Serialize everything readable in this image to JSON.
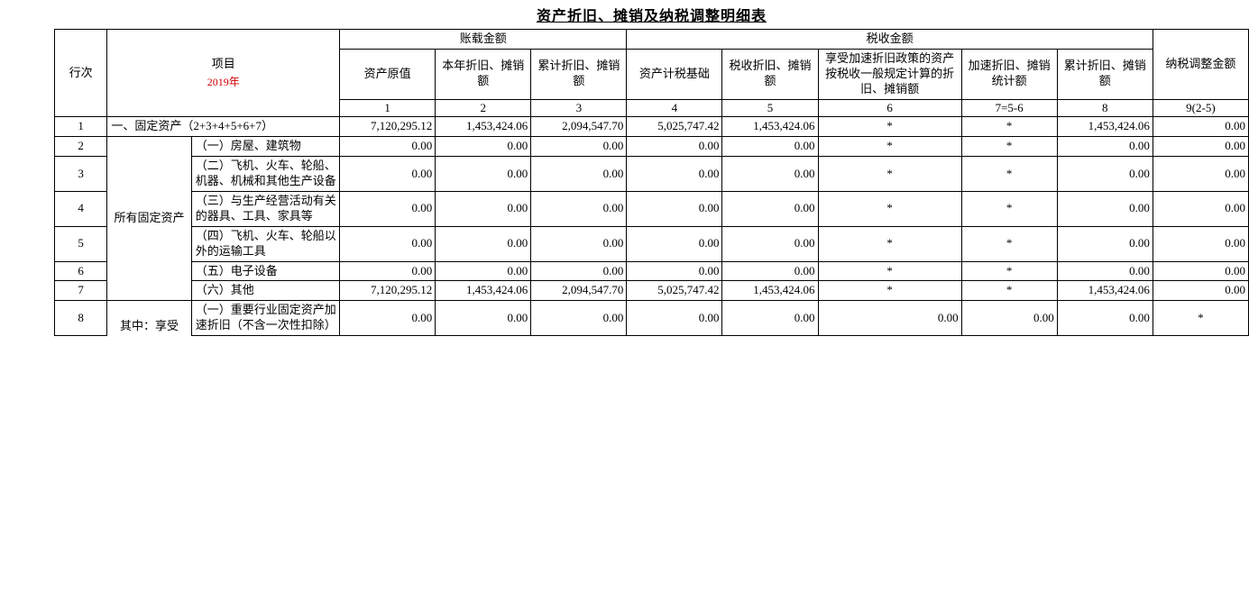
{
  "title": "资产折旧、摊销及纳税调整明细表",
  "year_label": "2019年",
  "header": {
    "rownum": "行次",
    "item": "项目",
    "book_group": "账载金额",
    "tax_group": "税收金额",
    "cols": [
      "资产原值",
      "本年折旧、摊销额",
      "累计折旧、摊销额",
      "资产计税基础",
      "税收折旧、摊销额",
      "享受加速折旧政策的资产按税收一般规定计算的折旧、摊销额",
      "加速折旧、摊销统计额",
      "累计折旧、摊销额",
      "纳税调整金额"
    ],
    "colnums": [
      "1",
      "2",
      "3",
      "4",
      "5",
      "6",
      "7=5-6",
      "8",
      "9(2-5)"
    ]
  },
  "group_labels": {
    "all_fixed_assets": "所有固定资产",
    "of_which_enjoy": "其中：享受"
  },
  "rows": [
    {
      "rn": "1",
      "item": "一、固定资产（2+3+4+5+6+7）",
      "v": [
        "7,120,295.12",
        "1,453,424.06",
        "2,094,547.70",
        "5,025,747.42",
        "1,453,424.06",
        "*",
        "*",
        "1,453,424.06",
        "0.00"
      ]
    },
    {
      "rn": "2",
      "item": "（一）房屋、建筑物",
      "v": [
        "0.00",
        "0.00",
        "0.00",
        "0.00",
        "0.00",
        "*",
        "*",
        "0.00",
        "0.00"
      ]
    },
    {
      "rn": "3",
      "item": "（二）飞机、火车、轮船、机器、机械和其他生产设备",
      "v": [
        "0.00",
        "0.00",
        "0.00",
        "0.00",
        "0.00",
        "*",
        "*",
        "0.00",
        "0.00"
      ]
    },
    {
      "rn": "4",
      "item": "（三）与生产经营活动有关的器具、工具、家具等",
      "v": [
        "0.00",
        "0.00",
        "0.00",
        "0.00",
        "0.00",
        "*",
        "*",
        "0.00",
        "0.00"
      ]
    },
    {
      "rn": "5",
      "item": "（四）飞机、火车、轮船以外的运输工具",
      "v": [
        "0.00",
        "0.00",
        "0.00",
        "0.00",
        "0.00",
        "*",
        "*",
        "0.00",
        "0.00"
      ]
    },
    {
      "rn": "6",
      "item": "（五）电子设备",
      "v": [
        "0.00",
        "0.00",
        "0.00",
        "0.00",
        "0.00",
        "*",
        "*",
        "0.00",
        "0.00"
      ]
    },
    {
      "rn": "7",
      "item": "（六）其他",
      "v": [
        "7,120,295.12",
        "1,453,424.06",
        "2,094,547.70",
        "5,025,747.42",
        "1,453,424.06",
        "*",
        "*",
        "1,453,424.06",
        "0.00"
      ]
    },
    {
      "rn": "8",
      "item": "（一）重要行业固定资产加速折旧（不含一次性扣除）",
      "v": [
        "0.00",
        "0.00",
        "0.00",
        "0.00",
        "0.00",
        "0.00",
        "0.00",
        "0.00",
        "*"
      ]
    }
  ]
}
